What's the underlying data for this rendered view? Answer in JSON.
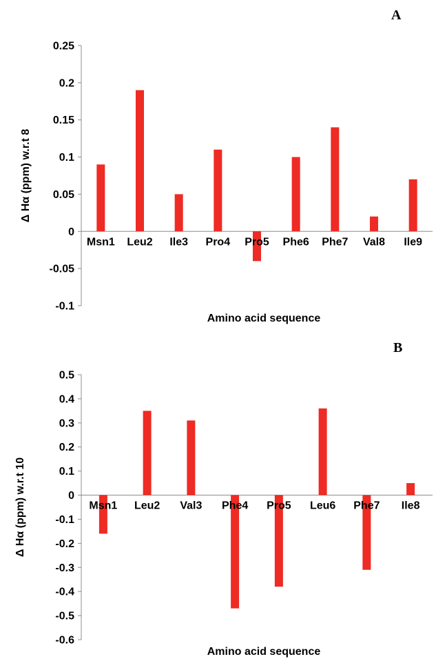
{
  "chart_data": [
    {
      "type": "bar",
      "panel_label": "A",
      "categories": [
        "Msn1",
        "Leu2",
        "Ile3",
        "Pro4",
        "Pro5",
        "Phe6",
        "Phe7",
        "Val8",
        "Ile9"
      ],
      "values": [
        0.09,
        0.19,
        0.05,
        0.11,
        -0.04,
        0.1,
        0.14,
        0.02,
        0.07
      ],
      "xlabel": "Amino acid sequence",
      "ylabel": "Δ Hα (ppm)  w.r.t 8",
      "ylim": [
        -0.1,
        0.25
      ],
      "yticks": [
        -0.1,
        -0.05,
        0,
        0.05,
        0.1,
        0.15,
        0.2,
        0.25
      ],
      "ytick_labels": [
        "-0.1",
        "-0.05",
        "0",
        "0.05",
        "0.1",
        "0.15",
        "0.2",
        "0.25"
      ],
      "grid": false,
      "bar_color": "#ee2b24"
    },
    {
      "type": "bar",
      "panel_label": "B",
      "categories": [
        "Msn1",
        "Leu2",
        "Val3",
        "Phe4",
        "Pro5",
        "Leu6",
        "Phe7",
        "Ile8"
      ],
      "values": [
        -0.16,
        0.35,
        0.31,
        -0.47,
        -0.38,
        0.36,
        -0.31,
        0.05
      ],
      "xlabel": "Amino acid sequence",
      "ylabel": "Δ Hα (ppm)  w.r.t 10",
      "ylim": [
        -0.6,
        0.5
      ],
      "yticks": [
        -0.6,
        -0.5,
        -0.4,
        -0.3,
        -0.2,
        -0.1,
        0,
        0.1,
        0.2,
        0.3,
        0.4,
        0.5
      ],
      "ytick_labels": [
        "-0.6",
        "-0.5",
        "-0.4",
        "-0.3",
        "-0.2",
        "-0.1",
        "0",
        "0.1",
        "0.2",
        "0.3",
        "0.4",
        "0.5"
      ],
      "grid": false,
      "bar_color": "#ee2b24"
    }
  ]
}
